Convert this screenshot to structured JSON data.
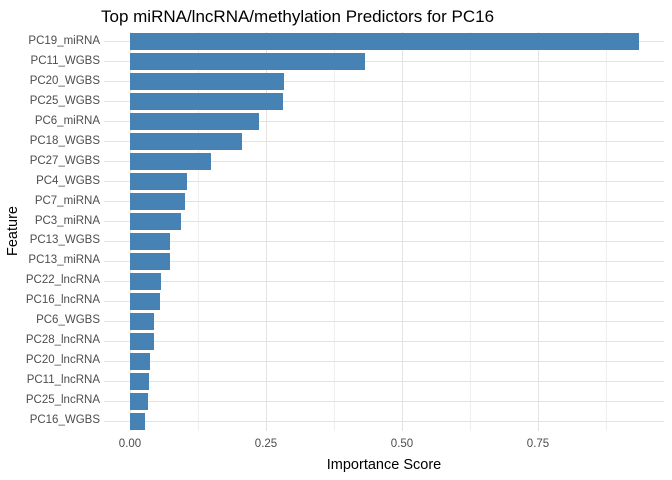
{
  "chart_data": {
    "type": "bar",
    "orientation": "horizontal",
    "title": "Top miRNA/lncRNA/methylation Predictors for PC16",
    "xlabel": "Importance Score",
    "ylabel": "Feature",
    "categories": [
      "PC19_miRNA",
      "PC11_WGBS",
      "PC20_WGBS",
      "PC25_WGBS",
      "PC6_miRNA",
      "PC18_WGBS",
      "PC27_WGBS",
      "PC4_WGBS",
      "PC7_miRNA",
      "PC3_miRNA",
      "PC13_WGBS",
      "PC13_miRNA",
      "PC22_lncRNA",
      "PC16_lncRNA",
      "PC6_WGBS",
      "PC28_lncRNA",
      "PC20_lncRNA",
      "PC11_lncRNA",
      "PC25_lncRNA",
      "PC16_WGBS"
    ],
    "values": [
      0.936,
      0.432,
      0.283,
      0.281,
      0.238,
      0.206,
      0.148,
      0.104,
      0.101,
      0.093,
      0.074,
      0.073,
      0.057,
      0.055,
      0.045,
      0.044,
      0.037,
      0.035,
      0.033,
      0.027
    ],
    "x_tick_values": [
      0.0,
      0.25,
      0.5,
      0.75
    ],
    "x_tick_labels": [
      "0.00",
      "0.25",
      "0.50",
      "0.75"
    ],
    "x_minor_tick_values": [
      0.125,
      0.375,
      0.625,
      0.875
    ],
    "xlim": [
      -0.048,
      0.982
    ],
    "bar_color": "#4682B4",
    "grid_major_color": "#e3e3e3",
    "grid_minor_color": "#efefef",
    "background_color": "#ffffff",
    "legend": "none",
    "grid": "on"
  }
}
